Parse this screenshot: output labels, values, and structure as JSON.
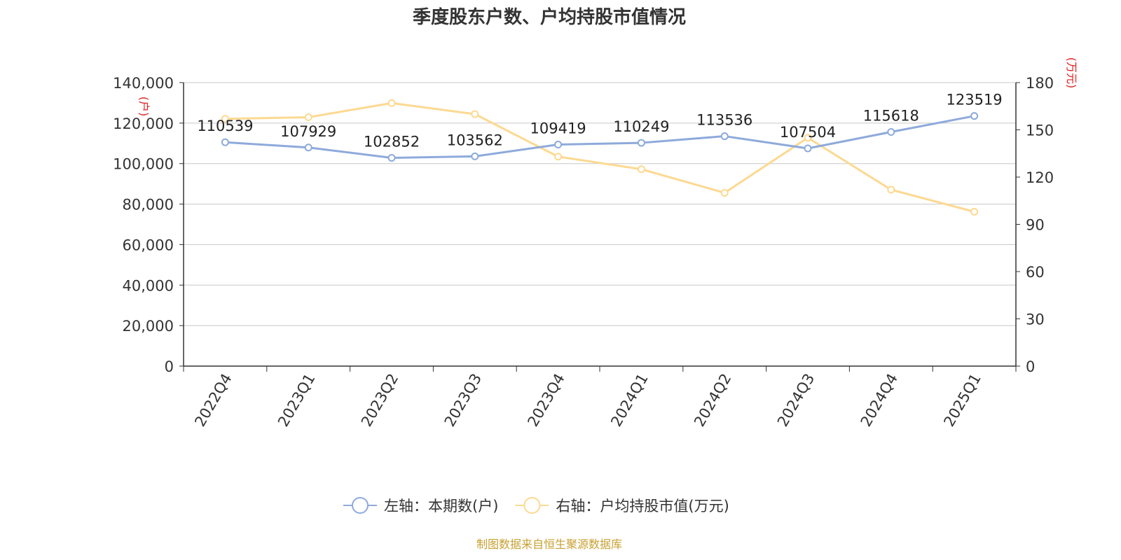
{
  "chart_data": {
    "type": "line",
    "title": "季度股东户数、户均持股市值情况",
    "categories": [
      "2022Q4",
      "2023Q1",
      "2023Q2",
      "2023Q3",
      "2023Q4",
      "2024Q1",
      "2024Q2",
      "2024Q3",
      "2024Q4",
      "2025Q1"
    ],
    "series": [
      {
        "name": "左轴：本期数(户)",
        "axis": "left",
        "color": "#8eaadb",
        "values": [
          110539,
          107929,
          102852,
          103562,
          109419,
          110249,
          113536,
          107504,
          115618,
          123519
        ],
        "show_labels": true
      },
      {
        "name": "右轴：户均持股市值(万元)",
        "axis": "right",
        "color": "#fcd992",
        "values": [
          157,
          158,
          167,
          160,
          133,
          125,
          110,
          145,
          112,
          98
        ],
        "show_labels": false
      }
    ],
    "left_axis": {
      "label": "(户)",
      "ylim": [
        0,
        140000
      ],
      "ticks": [
        "0",
        "20,000",
        "40,000",
        "60,000",
        "80,000",
        "100,000",
        "120,000",
        "140,000"
      ],
      "tick_values": [
        0,
        20000,
        40000,
        60000,
        80000,
        100000,
        120000,
        140000
      ]
    },
    "right_axis": {
      "label": "(万元)",
      "ylim": [
        0,
        180
      ],
      "ticks": [
        "0",
        "30",
        "60",
        "90",
        "120",
        "150",
        "180"
      ],
      "tick_values": [
        0,
        30,
        60,
        90,
        120,
        150,
        180
      ]
    },
    "grid": true,
    "legend_position": "bottom",
    "axis_label_color": "#e02020"
  },
  "source_note": "制图数据来自恒生聚源数据库"
}
